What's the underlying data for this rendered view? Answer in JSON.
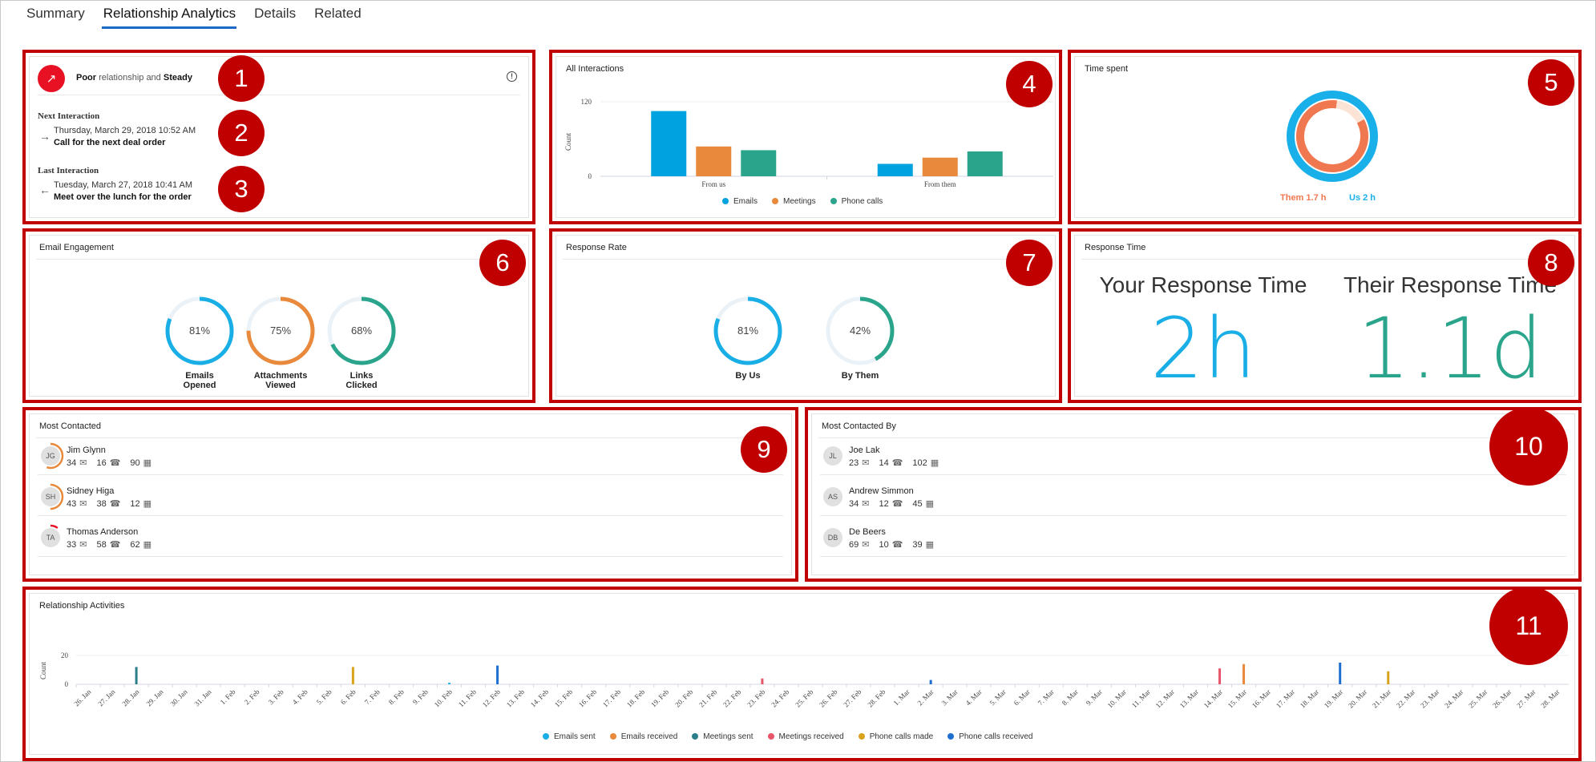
{
  "tabs": [
    {
      "label": "Summary"
    },
    {
      "label": "Relationship Analytics"
    },
    {
      "label": "Details"
    },
    {
      "label": "Related"
    }
  ],
  "badges": [
    "1",
    "2",
    "3",
    "4",
    "5",
    "6",
    "7",
    "8",
    "9",
    "10",
    "11"
  ],
  "relationship": {
    "health_word": "Poor",
    "middle": "relationship and",
    "trend_word": "Steady",
    "next_label": "Next Interaction",
    "next_date": "Thursday, March 29, 2018 10:52 AM",
    "next_text": "Call for the next deal order",
    "last_label": "Last Interaction",
    "last_date": "Tuesday, March 27, 2018 10:41 AM",
    "last_text": "Meet over the lunch for the order"
  },
  "all_interactions": {
    "title": "All Interactions",
    "ylabel": "Count",
    "ticks": [
      "120",
      "0"
    ],
    "groups": [
      "From us",
      "From them"
    ],
    "legend": [
      "Emails",
      "Meetings",
      "Phone calls"
    ],
    "colors": [
      "#00a2e0",
      "#e8893b",
      "#2aa58b"
    ]
  },
  "chart_data": [
    {
      "type": "bar",
      "title": "All Interactions",
      "categories": [
        "From us",
        "From them"
      ],
      "ylabel": "Count",
      "ylim": [
        0,
        120
      ],
      "series": [
        {
          "name": "Emails",
          "values": [
            105,
            20
          ]
        },
        {
          "name": "Meetings",
          "values": [
            48,
            30
          ]
        },
        {
          "name": "Phone calls",
          "values": [
            42,
            40
          ]
        }
      ]
    },
    {
      "type": "pie",
      "title": "Time spent",
      "series": [
        {
          "name": "Them",
          "values": [
            1.7
          ]
        },
        {
          "name": "Us",
          "values": [
            2
          ]
        }
      ]
    }
  ],
  "time_spent": {
    "title": "Time spent",
    "them_label": "Them 1.7 h",
    "us_label": "Us 2 h",
    "them_color": "#f07850",
    "us_color": "#19b0ea"
  },
  "email_engagement": {
    "title": "Email Engagement",
    "items": [
      {
        "pct": "81%",
        "value": 0.81,
        "label": "Emails Opened",
        "color": "#19aee6"
      },
      {
        "pct": "75%",
        "value": 0.75,
        "label": "Attachments Viewed",
        "color": "#e8893b"
      },
      {
        "pct": "68%",
        "value": 0.68,
        "label": "Links Clicked",
        "color": "#2aa58b"
      }
    ]
  },
  "response_rate": {
    "title": "Response Rate",
    "items": [
      {
        "pct": "81%",
        "value": 0.81,
        "label": "By Us",
        "color": "#19aee6"
      },
      {
        "pct": "42%",
        "value": 0.42,
        "label": "By Them",
        "color": "#2aa58b"
      }
    ]
  },
  "response_time": {
    "title": "Response Time",
    "yours_label": "Your Response Time",
    "yours_value": "2h",
    "theirs_label": "Their Response Time",
    "theirs_value": "1.1d",
    "yours_color": "#19aee6",
    "theirs_color": "#2aa58b"
  },
  "most_contacted": {
    "title": "Most Contacted",
    "people": [
      {
        "initials": "JG",
        "name": "Jim Glynn",
        "emails": "34",
        "calls": "16",
        "meetings": "90",
        "ring": 0.55
      },
      {
        "initials": "SH",
        "name": "Sidney Higa",
        "emails": "43",
        "calls": "38",
        "meetings": "12",
        "ring": 0.5
      },
      {
        "initials": "TA",
        "name": "Thomas Anderson",
        "emails": "33",
        "calls": "58",
        "meetings": "62",
        "ring": 0.1
      }
    ]
  },
  "most_contacted_by": {
    "title": "Most Contacted By",
    "people": [
      {
        "initials": "JL",
        "name": "Joe Lak",
        "emails": "23",
        "calls": "14",
        "meetings": "102"
      },
      {
        "initials": "AS",
        "name": "Andrew Simmon",
        "emails": "34",
        "calls": "12",
        "meetings": "45"
      },
      {
        "initials": "DB",
        "name": "De Beers",
        "emails": "69",
        "calls": "10",
        "meetings": "39"
      }
    ]
  },
  "activities": {
    "title": "Relationship Activities",
    "ylabel": "Count",
    "ticks": [
      "20",
      "0"
    ],
    "dates": [
      "26. Jan",
      "27. Jan",
      "28. Jan",
      "29. Jan",
      "30. Jan",
      "31. Jan",
      "1. Feb",
      "2. Feb",
      "3. Feb",
      "4. Feb",
      "5. Feb",
      "6. Feb",
      "7. Feb",
      "8. Feb",
      "9. Feb",
      "10. Feb",
      "11. Feb",
      "12. Feb",
      "13. Feb",
      "14. Feb",
      "15. Feb",
      "16. Feb",
      "17. Feb",
      "18. Feb",
      "19. Feb",
      "20. Feb",
      "21. Feb",
      "22. Feb",
      "23. Feb",
      "24. Feb",
      "25. Feb",
      "26. Feb",
      "27. Feb",
      "28. Feb",
      "1. Mar",
      "2. Mar",
      "3. Mar",
      "4. Mar",
      "5. Mar",
      "6. Mar",
      "7. Mar",
      "8. Mar",
      "9. Mar",
      "10. Mar",
      "11. Mar",
      "12. Mar",
      "13. Mar",
      "14. Mar",
      "15. Mar",
      "16. Mar",
      "17. Mar",
      "18. Mar",
      "19. Mar",
      "20. Mar",
      "21. Mar",
      "22. Mar",
      "23. Mar",
      "24. Mar",
      "25. Mar",
      "26. Mar",
      "27. Mar",
      "28. Mar"
    ],
    "legend": [
      {
        "name": "Emails sent",
        "color": "#19aee6"
      },
      {
        "name": "Emails received",
        "color": "#e8893b"
      },
      {
        "name": "Meetings sent",
        "color": "#2a7f8a"
      },
      {
        "name": "Meetings received",
        "color": "#e8556a"
      },
      {
        "name": "Phone calls made",
        "color": "#d9a21b"
      },
      {
        "name": "Phone calls received",
        "color": "#1f6fd1"
      }
    ],
    "points": [
      {
        "date": "28. Jan",
        "series": 2,
        "value": 12
      },
      {
        "date": "6. Feb",
        "series": 4,
        "value": 12
      },
      {
        "date": "10. Feb",
        "series": 0,
        "value": 1
      },
      {
        "date": "12. Feb",
        "series": 5,
        "value": 13
      },
      {
        "date": "23. Feb",
        "series": 3,
        "value": 4
      },
      {
        "date": "2. Mar",
        "series": 5,
        "value": 3
      },
      {
        "date": "14. Mar",
        "series": 3,
        "value": 11
      },
      {
        "date": "15. Mar",
        "series": 1,
        "value": 14
      },
      {
        "date": "19. Mar",
        "series": 5,
        "value": 15
      },
      {
        "date": "21. Mar",
        "series": 4,
        "value": 9
      }
    ]
  }
}
